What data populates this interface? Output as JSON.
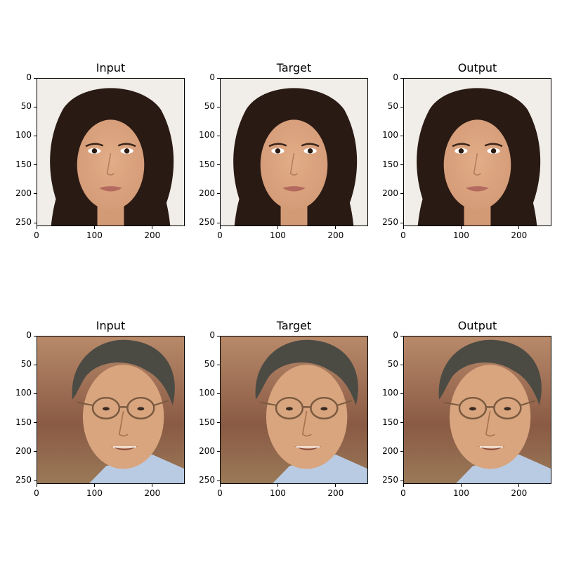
{
  "figure": {
    "columns": [
      "Input",
      "Target",
      "Output"
    ],
    "rows": [
      {
        "subject": "woman",
        "panels": [
          {
            "title": "Input",
            "variant": "input"
          },
          {
            "title": "Target",
            "variant": "target"
          },
          {
            "title": "Output",
            "variant": "output"
          }
        ]
      },
      {
        "subject": "man",
        "panels": [
          {
            "title": "Input",
            "variant": "input"
          },
          {
            "title": "Target",
            "variant": "target"
          },
          {
            "title": "Output",
            "variant": "output"
          }
        ]
      }
    ],
    "x_ticks": [
      "0",
      "100",
      "200"
    ],
    "y_ticks": [
      "0",
      "50",
      "100",
      "150",
      "200",
      "250"
    ],
    "x_tick_values": [
      0,
      100,
      200
    ],
    "y_tick_values": [
      0,
      50,
      100,
      150,
      200,
      250
    ],
    "image_extent": [
      0,
      256
    ],
    "colors": {
      "woman_bg": "#f1ede9",
      "woman_hair": "#2a1a14",
      "woman_skin": "#d39a76",
      "woman_lips": "#b46a5f",
      "man_bg": "#b88a6a",
      "man_bg_dark": "#8a5a44",
      "man_hair": "#4b4b44",
      "man_skin": "#d8a57f",
      "man_shirt": "#b9cbe3",
      "glasses": "#7a5a3f"
    }
  }
}
